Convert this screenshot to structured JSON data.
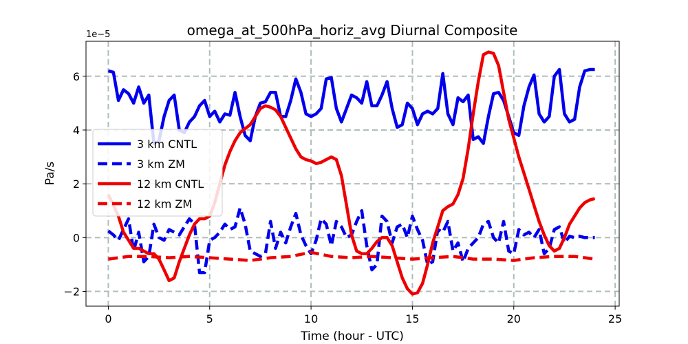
{
  "chart_data": {
    "type": "line",
    "title": "omega_at_500hPa_horiz_avg Diurnal Composite",
    "xlabel": "Time (hour - UTC)",
    "ylabel": "Pa/s",
    "y_scale_label": "1e−5",
    "xlim": [
      -1.1,
      25.2
    ],
    "ylim": [
      -2.55,
      7.3
    ],
    "x_ticks": [
      0,
      5,
      10,
      15,
      20,
      25
    ],
    "x_tick_labels": [
      "0",
      "5",
      "10",
      "15",
      "20",
      "25"
    ],
    "y_ticks": [
      -2,
      0,
      2,
      4,
      6
    ],
    "y_tick_labels": [
      "−2",
      "0",
      "2",
      "4",
      "6"
    ],
    "grid": true,
    "legend_position": "center-left",
    "series": [
      {
        "name": "3 km CNTL",
        "color": "#0000ee",
        "style": "solid",
        "x": [
          0,
          0.25,
          0.5,
          0.75,
          1,
          1.25,
          1.5,
          1.75,
          2,
          2.25,
          2.5,
          2.75,
          3,
          3.25,
          3.5,
          3.75,
          4,
          4.25,
          4.5,
          4.75,
          5,
          5.25,
          5.5,
          5.75,
          6,
          6.25,
          6.5,
          6.75,
          7,
          7.25,
          7.5,
          7.75,
          8,
          8.25,
          8.5,
          8.75,
          9,
          9.25,
          9.5,
          9.75,
          10,
          10.25,
          10.5,
          10.75,
          11,
          11.25,
          11.5,
          11.75,
          12,
          12.25,
          12.5,
          12.75,
          13,
          13.25,
          13.5,
          13.75,
          14,
          14.25,
          14.5,
          14.75,
          15,
          15.25,
          15.5,
          15.75,
          16,
          16.25,
          16.5,
          16.75,
          17,
          17.25,
          17.5,
          17.75,
          18,
          18.25,
          18.5,
          18.75,
          19,
          19.25,
          19.5,
          19.75,
          20,
          20.25,
          20.5,
          20.75,
          21,
          21.25,
          21.5,
          21.75,
          22,
          22.25,
          22.5,
          22.75,
          23,
          23.25,
          23.5,
          23.75,
          24
        ],
        "values": [
          6.2,
          6.15,
          5.1,
          5.5,
          5.35,
          5.0,
          5.6,
          5.0,
          5.3,
          3.5,
          3.6,
          4.5,
          5.1,
          5.3,
          4.0,
          3.9,
          4.3,
          4.5,
          4.9,
          5.1,
          4.5,
          4.7,
          4.3,
          4.6,
          4.55,
          5.4,
          4.5,
          3.8,
          3.6,
          4.5,
          5.0,
          5.05,
          5.4,
          5.4,
          4.5,
          4.5,
          5.1,
          5.9,
          5.4,
          4.6,
          4.5,
          4.6,
          4.8,
          5.9,
          5.95,
          4.8,
          4.3,
          4.8,
          5.3,
          5.2,
          5.0,
          5.8,
          4.9,
          4.9,
          5.3,
          5.8,
          4.8,
          4.1,
          4.2,
          5.0,
          4.8,
          4.2,
          4.6,
          4.7,
          4.6,
          4.8,
          6.1,
          4.6,
          4.2,
          5.2,
          5.05,
          5.3,
          3.65,
          3.75,
          3.5,
          4.5,
          5.35,
          5.4,
          5.1,
          4.5,
          3.9,
          3.8,
          4.9,
          5.6,
          6.05,
          4.6,
          4.3,
          4.5,
          6.0,
          6.25,
          4.6,
          4.3,
          4.4,
          5.6,
          6.2,
          6.25,
          6.25
        ]
      },
      {
        "name": "3 km ZM",
        "color": "#0000ee",
        "style": "dashed",
        "x": [
          0,
          0.25,
          0.5,
          0.75,
          1,
          1.25,
          1.5,
          1.75,
          2,
          2.25,
          2.5,
          2.75,
          3,
          3.25,
          3.5,
          3.75,
          4,
          4.25,
          4.5,
          4.75,
          5,
          5.25,
          5.5,
          5.75,
          6,
          6.25,
          6.5,
          6.75,
          7,
          7.25,
          7.5,
          7.75,
          8,
          8.25,
          8.5,
          8.75,
          9,
          9.25,
          9.5,
          9.75,
          10,
          10.25,
          10.5,
          10.75,
          11,
          11.25,
          11.5,
          11.75,
          12,
          12.25,
          12.5,
          12.75,
          13,
          13.25,
          13.5,
          13.75,
          14,
          14.25,
          14.5,
          14.75,
          15,
          15.25,
          15.5,
          15.75,
          16,
          16.25,
          16.5,
          16.75,
          17,
          17.25,
          17.5,
          17.75,
          18,
          18.25,
          18.5,
          18.75,
          19,
          19.25,
          19.5,
          19.75,
          20,
          20.25,
          20.5,
          20.75,
          21,
          21.25,
          21.5,
          21.75,
          22,
          22.25,
          22.5,
          22.75,
          23,
          23.25,
          23.5,
          23.75,
          24
        ],
        "values": [
          0.25,
          0.1,
          -0.1,
          0.3,
          0.7,
          -0.5,
          0.2,
          -0.9,
          -0.7,
          0.5,
          0.0,
          -0.1,
          0.3,
          0.2,
          0.1,
          0.4,
          0.7,
          0.5,
          -1.3,
          -1.3,
          -0.1,
          0.0,
          0.2,
          0.5,
          0.3,
          0.4,
          1.1,
          0.5,
          -0.5,
          -0.6,
          -0.7,
          -0.6,
          0.6,
          -0.4,
          0.2,
          -0.2,
          0.4,
          0.9,
          0.1,
          -0.3,
          -0.6,
          -0.1,
          0.7,
          0.5,
          -0.3,
          0.6,
          0.4,
          0.0,
          0.1,
          0.6,
          1.0,
          -0.3,
          -1.2,
          -1.0,
          0.8,
          0.6,
          -0.2,
          0.4,
          0.5,
          0.0,
          0.8,
          0.3,
          -0.1,
          -1.0,
          -0.9,
          0.3,
          0.2,
          0.6,
          -0.5,
          -0.2,
          -0.9,
          -0.4,
          -0.2,
          0.0,
          0.5,
          0.6,
          0.0,
          -0.2,
          0.6,
          -0.5,
          -0.6,
          0.3,
          0.1,
          0.2,
          0.0,
          0.3,
          -0.6,
          -0.4,
          0.3,
          0.4,
          -0.2,
          0.05,
          0.0,
          0.05,
          0.0,
          0.0,
          0.0
        ]
      },
      {
        "name": "12 km CNTL",
        "color": "#ee0000",
        "style": "solid",
        "x": [
          0,
          0.25,
          0.5,
          0.75,
          1,
          1.25,
          1.5,
          1.75,
          2,
          2.25,
          2.5,
          2.75,
          3,
          3.25,
          3.5,
          3.75,
          4,
          4.25,
          4.5,
          4.75,
          5,
          5.25,
          5.5,
          5.75,
          6,
          6.25,
          6.5,
          6.75,
          7,
          7.25,
          7.5,
          7.75,
          8,
          8.25,
          8.5,
          8.75,
          9,
          9.25,
          9.5,
          9.75,
          10,
          10.25,
          10.5,
          10.75,
          11,
          11.25,
          11.5,
          11.75,
          12,
          12.25,
          12.5,
          12.75,
          13,
          13.25,
          13.5,
          13.75,
          14,
          14.25,
          14.5,
          14.75,
          15,
          15.25,
          15.5,
          15.75,
          16,
          16.25,
          16.5,
          16.75,
          17,
          17.25,
          17.5,
          17.75,
          18,
          18.25,
          18.5,
          18.75,
          19,
          19.25,
          19.5,
          19.75,
          20,
          20.25,
          20.5,
          20.75,
          21,
          21.25,
          21.5,
          21.75,
          22,
          22.25,
          22.5,
          22.75,
          23,
          23.25,
          23.5,
          23.75,
          24
        ],
        "values": [
          1.6,
          1.2,
          0.8,
          0.2,
          -0.1,
          -0.4,
          -0.4,
          -0.5,
          -0.6,
          -0.6,
          -0.8,
          -1.2,
          -1.6,
          -1.5,
          -0.9,
          -0.4,
          0.1,
          0.5,
          0.7,
          0.7,
          0.8,
          1.3,
          2.0,
          2.7,
          3.2,
          3.6,
          3.9,
          4.05,
          4.2,
          4.5,
          4.8,
          4.9,
          4.85,
          4.75,
          4.5,
          4.1,
          3.7,
          3.3,
          3.0,
          2.9,
          2.85,
          2.75,
          2.8,
          2.9,
          3.0,
          2.9,
          2.3,
          1.2,
          0.1,
          -0.5,
          -0.6,
          -0.6,
          -0.4,
          -0.15,
          0.0,
          0.0,
          -0.3,
          -0.9,
          -1.5,
          -1.9,
          -2.1,
          -2.05,
          -1.7,
          -1.0,
          -0.2,
          0.4,
          1.0,
          1.15,
          1.25,
          1.6,
          2.2,
          3.3,
          4.6,
          5.8,
          6.8,
          6.9,
          6.85,
          6.4,
          5.4,
          4.4,
          3.7,
          3.0,
          2.4,
          1.8,
          1.2,
          0.6,
          0.1,
          -0.3,
          -0.5,
          -0.4,
          0.0,
          0.5,
          0.8,
          1.1,
          1.3,
          1.4,
          1.45
        ]
      },
      {
        "name": "12 km ZM",
        "color": "#ee0000",
        "style": "dashed",
        "x": [
          0,
          1,
          2,
          3,
          4,
          5,
          6,
          7,
          8,
          9,
          10,
          11,
          12,
          13,
          14,
          15,
          16,
          17,
          18,
          19,
          20,
          21,
          22,
          23,
          24
        ],
        "values": [
          -0.8,
          -0.7,
          -0.7,
          -0.75,
          -0.7,
          -0.75,
          -0.8,
          -0.85,
          -0.75,
          -0.7,
          -0.55,
          -0.7,
          -0.75,
          -0.7,
          -0.75,
          -0.8,
          -0.75,
          -0.7,
          -0.8,
          -0.8,
          -0.85,
          -0.75,
          -0.7,
          -0.7,
          -0.8
        ]
      }
    ]
  }
}
